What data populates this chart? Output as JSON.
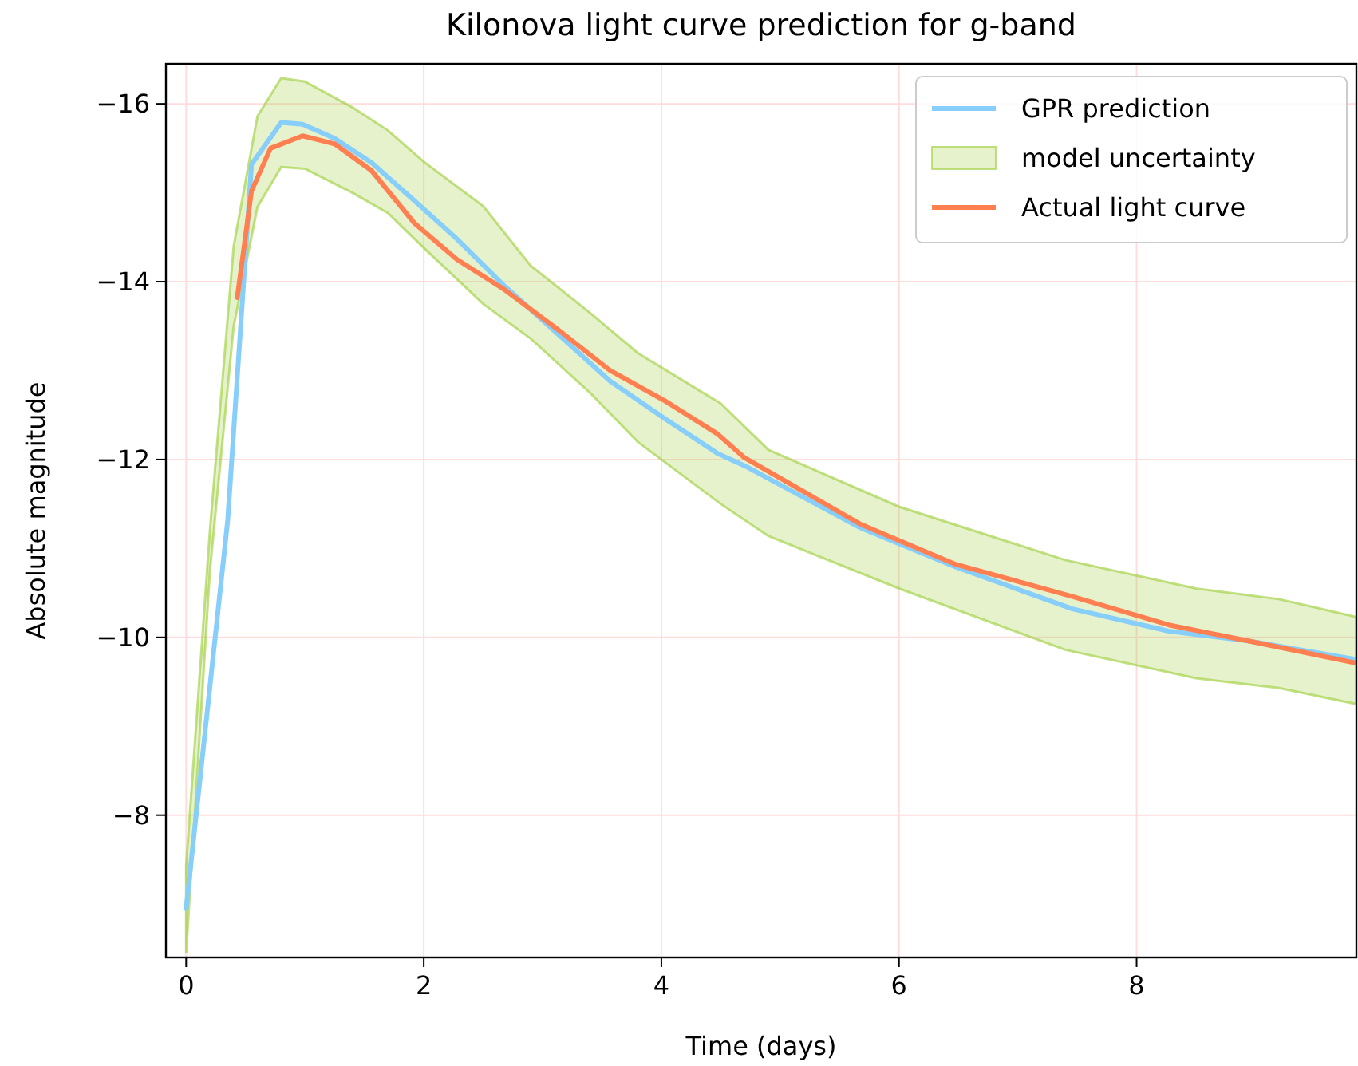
{
  "chart_data": {
    "type": "line",
    "title": "Kilonova light curve prediction for g-band",
    "xlabel": "Time (days)",
    "ylabel": "Absolute magnitude",
    "xlim": [
      -0.17,
      9.85
    ],
    "ylim": [
      -6.4,
      -16.45
    ],
    "xticks": [
      0,
      2,
      4,
      6,
      8
    ],
    "yticks": [
      {
        "value": -8,
        "label": "−8"
      },
      {
        "value": -10,
        "label": "−10"
      },
      {
        "value": -12,
        "label": "−12"
      },
      {
        "value": -14,
        "label": "−14"
      },
      {
        "value": -16,
        "label": "−16"
      }
    ],
    "grid": true,
    "legend": "top right",
    "line_style": "solid",
    "marker": "none",
    "series": [
      {
        "name": "GPR prediction",
        "type": "line",
        "color": "#87cefa",
        "x": [
          0,
          0.35,
          0.55,
          0.8,
          0.98,
          1.25,
          1.56,
          1.88,
          2.28,
          2.68,
          3.13,
          3.57,
          4.03,
          4.47,
          4.7,
          5.68,
          6.48,
          7.46,
          8.27,
          8.94,
          9.85
        ],
        "values": [
          -6.95,
          -11.32,
          -15.32,
          -15.79,
          -15.77,
          -15.61,
          -15.34,
          -14.96,
          -14.48,
          -13.95,
          -13.41,
          -12.88,
          -12.46,
          -12.07,
          -11.93,
          -11.23,
          -10.79,
          -10.32,
          -10.07,
          -9.96,
          -9.75
        ]
      },
      {
        "name": "model uncertainty",
        "color": "#9acd32",
        "x": [
          0,
          0.2,
          0.4,
          0.6,
          0.8,
          1.0,
          1.4,
          1.7,
          2.0,
          2.5,
          2.9,
          3.4,
          3.8,
          4.5,
          4.9,
          6.0,
          7.4,
          8.5,
          9.2,
          9.85
        ],
        "lower": [
          -7.43,
          -11.2,
          -14.4,
          -15.86,
          -16.29,
          -16.25,
          -15.96,
          -15.7,
          -15.35,
          -14.85,
          -14.18,
          -13.65,
          -13.2,
          -12.63,
          -12.11,
          -11.47,
          -10.87,
          -10.55,
          -10.43,
          -10.23
        ],
        "values": [
          null,
          null,
          null,
          null,
          null,
          null,
          null,
          null,
          null,
          null,
          null,
          null,
          null,
          null,
          null,
          null,
          null,
          null,
          null,
          null
        ],
        "upper": [
          -6.45,
          -10.75,
          -13.5,
          -14.84,
          -15.29,
          -15.27,
          -15.0,
          -14.77,
          -14.38,
          -13.75,
          -13.36,
          -12.75,
          -12.2,
          -11.5,
          -11.14,
          -10.55,
          -9.86,
          -9.54,
          -9.43,
          -9.25
        ]
      },
      {
        "name": "Actual light curve",
        "type": "line",
        "color": "#ff7f50",
        "x": [
          0.43,
          0.55,
          0.71,
          0.98,
          1.25,
          1.56,
          1.92,
          2.28,
          2.68,
          3.13,
          3.57,
          4.03,
          4.47,
          4.7,
          5.68,
          6.48,
          7.46,
          8.27,
          8.94,
          9.85
        ],
        "values": [
          -13.82,
          -15.02,
          -15.5,
          -15.64,
          -15.55,
          -15.25,
          -14.66,
          -14.25,
          -13.91,
          -13.46,
          -13.0,
          -12.66,
          -12.29,
          -12.02,
          -11.27,
          -10.82,
          -10.46,
          -10.14,
          -9.96,
          -9.71
        ]
      }
    ]
  }
}
